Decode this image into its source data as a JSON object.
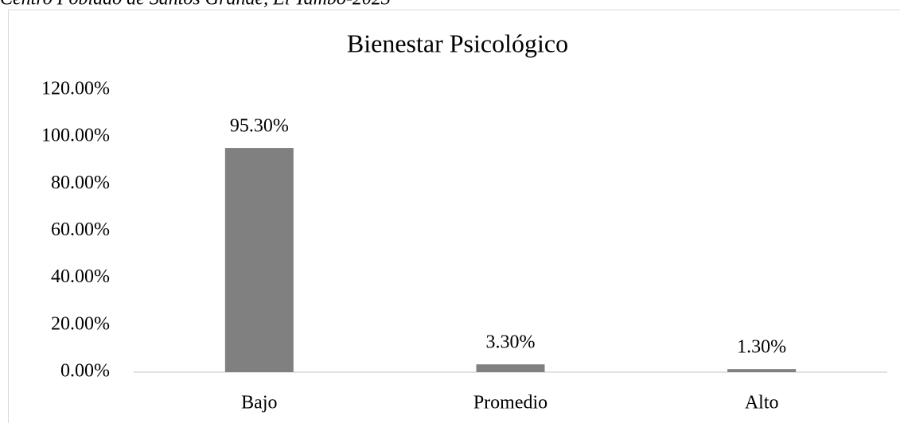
{
  "caption": "Centro Poblado de Santos Grande, El Tambo-2023",
  "chart_data": {
    "type": "bar",
    "title": "Bienestar Psicológico",
    "categories": [
      "Bajo",
      "Promedio",
      "Alto"
    ],
    "values": [
      95.3,
      3.3,
      1.3
    ],
    "value_labels": [
      "95.30%",
      "3.30%",
      "1.30%"
    ],
    "color": "#808080",
    "ylim": [
      0,
      120
    ],
    "yticks": [
      {
        "value": 0,
        "label": "0.00%"
      },
      {
        "value": 20,
        "label": "20.00%"
      },
      {
        "value": 40,
        "label": "40.00%"
      },
      {
        "value": 60,
        "label": "60.00%"
      },
      {
        "value": 80,
        "label": "80.00%"
      },
      {
        "value": 100,
        "label": "100.00%"
      },
      {
        "value": 120,
        "label": "120.00%"
      }
    ],
    "grid": false
  }
}
